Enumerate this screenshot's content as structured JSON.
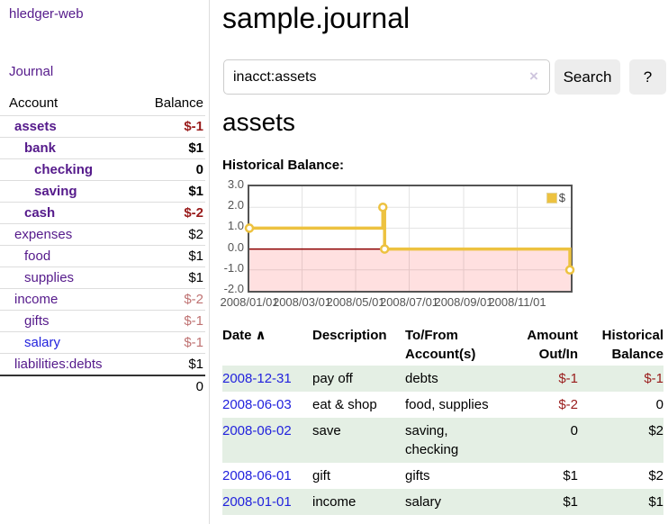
{
  "app": {
    "brand": "hledger-web",
    "nav_journal": "Journal"
  },
  "sidebar": {
    "headers": {
      "account": "Account",
      "balance": "Balance"
    },
    "accounts": [
      {
        "label": "assets",
        "balance": "$-1",
        "indent": 1,
        "bold": true,
        "link": "purple",
        "balance_color": "neg"
      },
      {
        "label": "bank",
        "balance": "$1",
        "indent": 2,
        "bold": true,
        "link": "purple",
        "balance_color": ""
      },
      {
        "label": "checking",
        "balance": "0",
        "indent": 3,
        "bold": true,
        "link": "purple",
        "balance_color": ""
      },
      {
        "label": "saving",
        "balance": "$1",
        "indent": 3,
        "bold": true,
        "link": "purple",
        "balance_color": ""
      },
      {
        "label": "cash",
        "balance": "$-2",
        "indent": 2,
        "bold": true,
        "link": "purple",
        "balance_color": "neg"
      },
      {
        "label": "expenses",
        "balance": "$2",
        "indent": 1,
        "bold": false,
        "link": "purple",
        "balance_color": ""
      },
      {
        "label": "food",
        "balance": "$1",
        "indent": 2,
        "bold": false,
        "link": "purple",
        "balance_color": ""
      },
      {
        "label": "supplies",
        "balance": "$1",
        "indent": 2,
        "bold": false,
        "link": "purple",
        "balance_color": ""
      },
      {
        "label": "income",
        "balance": "$-2",
        "indent": 1,
        "bold": false,
        "link": "purple",
        "balance_color": "neg-faded"
      },
      {
        "label": "gifts",
        "balance": "$-1",
        "indent": 2,
        "bold": false,
        "link": "purple",
        "balance_color": "neg-faded"
      },
      {
        "label": "salary",
        "balance": "$-1",
        "indent": 2,
        "bold": false,
        "link": "blue",
        "balance_color": "neg-faded"
      },
      {
        "label": "liabilities:debts",
        "balance": "$1",
        "indent": 1,
        "bold": false,
        "link": "purple",
        "balance_color": ""
      }
    ],
    "total": "0"
  },
  "main": {
    "title": "sample.journal",
    "search": {
      "value": "inacct:assets",
      "clear_icon": "×",
      "search_button": "Search",
      "help_button": "?"
    },
    "account_heading": "assets",
    "chart_label": "Historical Balance:"
  },
  "chart_data": {
    "type": "line",
    "title": "Historical Balance:",
    "step": true,
    "series": [
      {
        "name": "$",
        "color": "#edc240",
        "points": [
          {
            "date": "2008/01/01",
            "value": 1
          },
          {
            "date": "2008/06/01",
            "value": 2
          },
          {
            "date": "2008/06/03",
            "value": 0
          },
          {
            "date": "2008/12/31",
            "value": -1
          }
        ]
      }
    ],
    "ylim": [
      -2.0,
      3.0
    ],
    "yticks": [
      "3.0",
      "2.0",
      "1.0",
      "0.0",
      "-1.0",
      "-2.0"
    ],
    "xlim": [
      "2008/01/01",
      "2009/01/01"
    ],
    "xticks": [
      "2008/01/01",
      "2008/03/01",
      "2008/05/01",
      "2008/07/01",
      "2008/09/01",
      "2008/11/01"
    ],
    "legend": "$",
    "legend_position": "top-right",
    "grid": true,
    "grid_color": "#e3e3e3",
    "negative_region_fill": "rgba(255,0,0,0.12)",
    "zero_line_color": "#8b0000",
    "border_color": "#545454"
  },
  "register": {
    "headers": {
      "date": "Date",
      "sort_icon": "∧",
      "description": "Description",
      "accounts": "To/From Account(s)",
      "amount": "Amount Out/In",
      "balance": "Historical Balance"
    },
    "rows": [
      {
        "date": "2008-12-31",
        "description": "pay off",
        "accounts": "debts",
        "amount": "$-1",
        "amount_color": "neg",
        "balance": "$-1",
        "balance_color": "neg",
        "shaded": true
      },
      {
        "date": "2008-06-03",
        "description": "eat & shop",
        "accounts": "food, supplies",
        "amount": "$-2",
        "amount_color": "neg",
        "balance": "0",
        "balance_color": "",
        "shaded": false
      },
      {
        "date": "2008-06-02",
        "description": "save",
        "accounts": "saving, checking",
        "amount": "0",
        "amount_color": "",
        "balance": "$2",
        "balance_color": "",
        "shaded": true
      },
      {
        "date": "2008-06-01",
        "description": "gift",
        "accounts": "gifts",
        "amount": "$1",
        "amount_color": "",
        "balance": "$2",
        "balance_color": "",
        "shaded": false
      },
      {
        "date": "2008-01-01",
        "description": "income",
        "accounts": "salary",
        "amount": "$1",
        "amount_color": "",
        "balance": "$1",
        "balance_color": "",
        "shaded": true
      }
    ]
  },
  "colors": {
    "accent_purple": "#551a8b",
    "link_blue": "#2222dd",
    "negative_strong": "#991b1b",
    "negative_faded": "#bf7272",
    "row_shade_green": "#e4efe4",
    "chart_line_yellow": "#edc240"
  }
}
